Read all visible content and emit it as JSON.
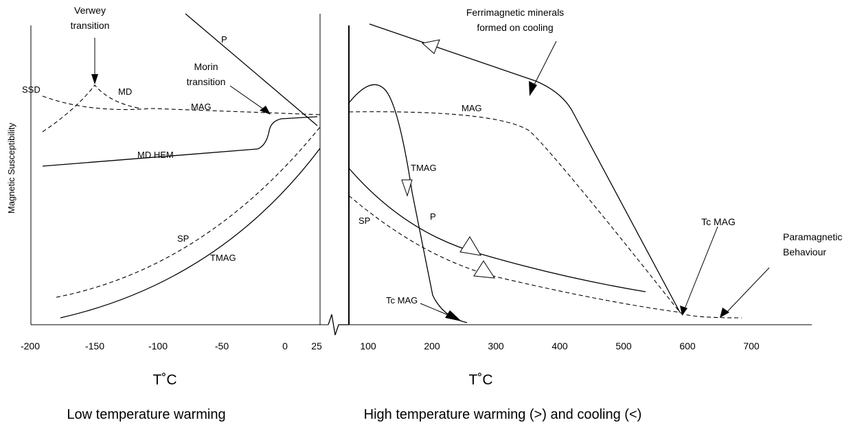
{
  "y_axis_label": "Magnetic Susceptibility",
  "left_panel": {
    "x_ticks": [
      "-200",
      "-150",
      "-100",
      "-50",
      "0",
      "25"
    ],
    "x_axis_label": "T˚C",
    "title": "Low temperature warming",
    "labels": {
      "verwey": [
        "Verwey",
        "transition"
      ],
      "morin": [
        "Morin",
        "transition"
      ],
      "ssd": "SSD",
      "md": "MD",
      "mag": "MAG",
      "md_hem": "MD HEM",
      "sp": "SP",
      "tmag": "TMAG",
      "p": "P"
    }
  },
  "right_panel": {
    "x_ticks": [
      "100",
      "200",
      "300",
      "400",
      "500",
      "600",
      "700"
    ],
    "x_axis_label": "T˚C",
    "title": "High temperature warming (>) and cooling (<)",
    "labels": {
      "ferri": [
        "Ferrimagnetic minerals",
        "formed on cooling"
      ],
      "mag": "MAG",
      "tmag": "TMAG",
      "p": "P",
      "sp": "SP",
      "tc_mag_upper": "Tc MAG",
      "paramagnetic": [
        "Paramagnetic",
        "Behaviour"
      ],
      "tc_mag_lower": "Tc MAG"
    }
  }
}
